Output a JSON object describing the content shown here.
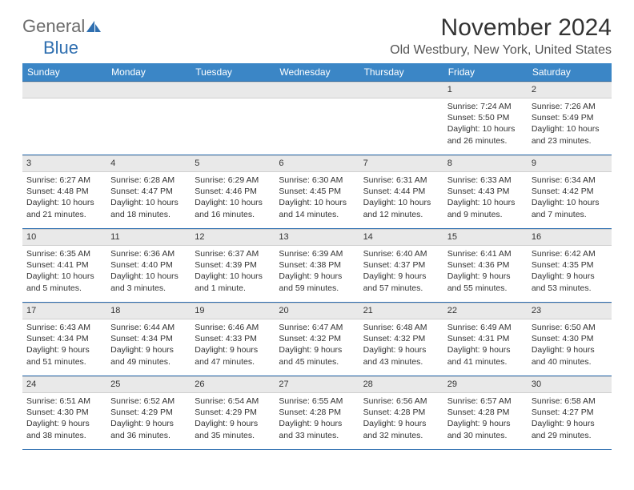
{
  "brand": {
    "text1": "General",
    "text2": "Blue",
    "primary_color": "#2f6fb0",
    "gray": "#6c6c6c"
  },
  "title": "November 2024",
  "location": "Old Westbury, New York, United States",
  "columns": [
    "Sunday",
    "Monday",
    "Tuesday",
    "Wednesday",
    "Thursday",
    "Friday",
    "Saturday"
  ],
  "theme": {
    "header_bg": "#3b86c6",
    "header_fg": "#ffffff",
    "daynum_bg": "#e9e9e9",
    "rule_color": "#2f6fb0",
    "body_font_size": 10.5
  },
  "weeks": [
    [
      null,
      null,
      null,
      null,
      null,
      {
        "n": "1",
        "sr": "Sunrise: 7:24 AM",
        "ss": "Sunset: 5:50 PM",
        "dl": "Daylight: 10 hours and 26 minutes."
      },
      {
        "n": "2",
        "sr": "Sunrise: 7:26 AM",
        "ss": "Sunset: 5:49 PM",
        "dl": "Daylight: 10 hours and 23 minutes."
      }
    ],
    [
      {
        "n": "3",
        "sr": "Sunrise: 6:27 AM",
        "ss": "Sunset: 4:48 PM",
        "dl": "Daylight: 10 hours and 21 minutes."
      },
      {
        "n": "4",
        "sr": "Sunrise: 6:28 AM",
        "ss": "Sunset: 4:47 PM",
        "dl": "Daylight: 10 hours and 18 minutes."
      },
      {
        "n": "5",
        "sr": "Sunrise: 6:29 AM",
        "ss": "Sunset: 4:46 PM",
        "dl": "Daylight: 10 hours and 16 minutes."
      },
      {
        "n": "6",
        "sr": "Sunrise: 6:30 AM",
        "ss": "Sunset: 4:45 PM",
        "dl": "Daylight: 10 hours and 14 minutes."
      },
      {
        "n": "7",
        "sr": "Sunrise: 6:31 AM",
        "ss": "Sunset: 4:44 PM",
        "dl": "Daylight: 10 hours and 12 minutes."
      },
      {
        "n": "8",
        "sr": "Sunrise: 6:33 AM",
        "ss": "Sunset: 4:43 PM",
        "dl": "Daylight: 10 hours and 9 minutes."
      },
      {
        "n": "9",
        "sr": "Sunrise: 6:34 AM",
        "ss": "Sunset: 4:42 PM",
        "dl": "Daylight: 10 hours and 7 minutes."
      }
    ],
    [
      {
        "n": "10",
        "sr": "Sunrise: 6:35 AM",
        "ss": "Sunset: 4:41 PM",
        "dl": "Daylight: 10 hours and 5 minutes."
      },
      {
        "n": "11",
        "sr": "Sunrise: 6:36 AM",
        "ss": "Sunset: 4:40 PM",
        "dl": "Daylight: 10 hours and 3 minutes."
      },
      {
        "n": "12",
        "sr": "Sunrise: 6:37 AM",
        "ss": "Sunset: 4:39 PM",
        "dl": "Daylight: 10 hours and 1 minute."
      },
      {
        "n": "13",
        "sr": "Sunrise: 6:39 AM",
        "ss": "Sunset: 4:38 PM",
        "dl": "Daylight: 9 hours and 59 minutes."
      },
      {
        "n": "14",
        "sr": "Sunrise: 6:40 AM",
        "ss": "Sunset: 4:37 PM",
        "dl": "Daylight: 9 hours and 57 minutes."
      },
      {
        "n": "15",
        "sr": "Sunrise: 6:41 AM",
        "ss": "Sunset: 4:36 PM",
        "dl": "Daylight: 9 hours and 55 minutes."
      },
      {
        "n": "16",
        "sr": "Sunrise: 6:42 AM",
        "ss": "Sunset: 4:35 PM",
        "dl": "Daylight: 9 hours and 53 minutes."
      }
    ],
    [
      {
        "n": "17",
        "sr": "Sunrise: 6:43 AM",
        "ss": "Sunset: 4:34 PM",
        "dl": "Daylight: 9 hours and 51 minutes."
      },
      {
        "n": "18",
        "sr": "Sunrise: 6:44 AM",
        "ss": "Sunset: 4:34 PM",
        "dl": "Daylight: 9 hours and 49 minutes."
      },
      {
        "n": "19",
        "sr": "Sunrise: 6:46 AM",
        "ss": "Sunset: 4:33 PM",
        "dl": "Daylight: 9 hours and 47 minutes."
      },
      {
        "n": "20",
        "sr": "Sunrise: 6:47 AM",
        "ss": "Sunset: 4:32 PM",
        "dl": "Daylight: 9 hours and 45 minutes."
      },
      {
        "n": "21",
        "sr": "Sunrise: 6:48 AM",
        "ss": "Sunset: 4:32 PM",
        "dl": "Daylight: 9 hours and 43 minutes."
      },
      {
        "n": "22",
        "sr": "Sunrise: 6:49 AM",
        "ss": "Sunset: 4:31 PM",
        "dl": "Daylight: 9 hours and 41 minutes."
      },
      {
        "n": "23",
        "sr": "Sunrise: 6:50 AM",
        "ss": "Sunset: 4:30 PM",
        "dl": "Daylight: 9 hours and 40 minutes."
      }
    ],
    [
      {
        "n": "24",
        "sr": "Sunrise: 6:51 AM",
        "ss": "Sunset: 4:30 PM",
        "dl": "Daylight: 9 hours and 38 minutes."
      },
      {
        "n": "25",
        "sr": "Sunrise: 6:52 AM",
        "ss": "Sunset: 4:29 PM",
        "dl": "Daylight: 9 hours and 36 minutes."
      },
      {
        "n": "26",
        "sr": "Sunrise: 6:54 AM",
        "ss": "Sunset: 4:29 PM",
        "dl": "Daylight: 9 hours and 35 minutes."
      },
      {
        "n": "27",
        "sr": "Sunrise: 6:55 AM",
        "ss": "Sunset: 4:28 PM",
        "dl": "Daylight: 9 hours and 33 minutes."
      },
      {
        "n": "28",
        "sr": "Sunrise: 6:56 AM",
        "ss": "Sunset: 4:28 PM",
        "dl": "Daylight: 9 hours and 32 minutes."
      },
      {
        "n": "29",
        "sr": "Sunrise: 6:57 AM",
        "ss": "Sunset: 4:28 PM",
        "dl": "Daylight: 9 hours and 30 minutes."
      },
      {
        "n": "30",
        "sr": "Sunrise: 6:58 AM",
        "ss": "Sunset: 4:27 PM",
        "dl": "Daylight: 9 hours and 29 minutes."
      }
    ]
  ]
}
